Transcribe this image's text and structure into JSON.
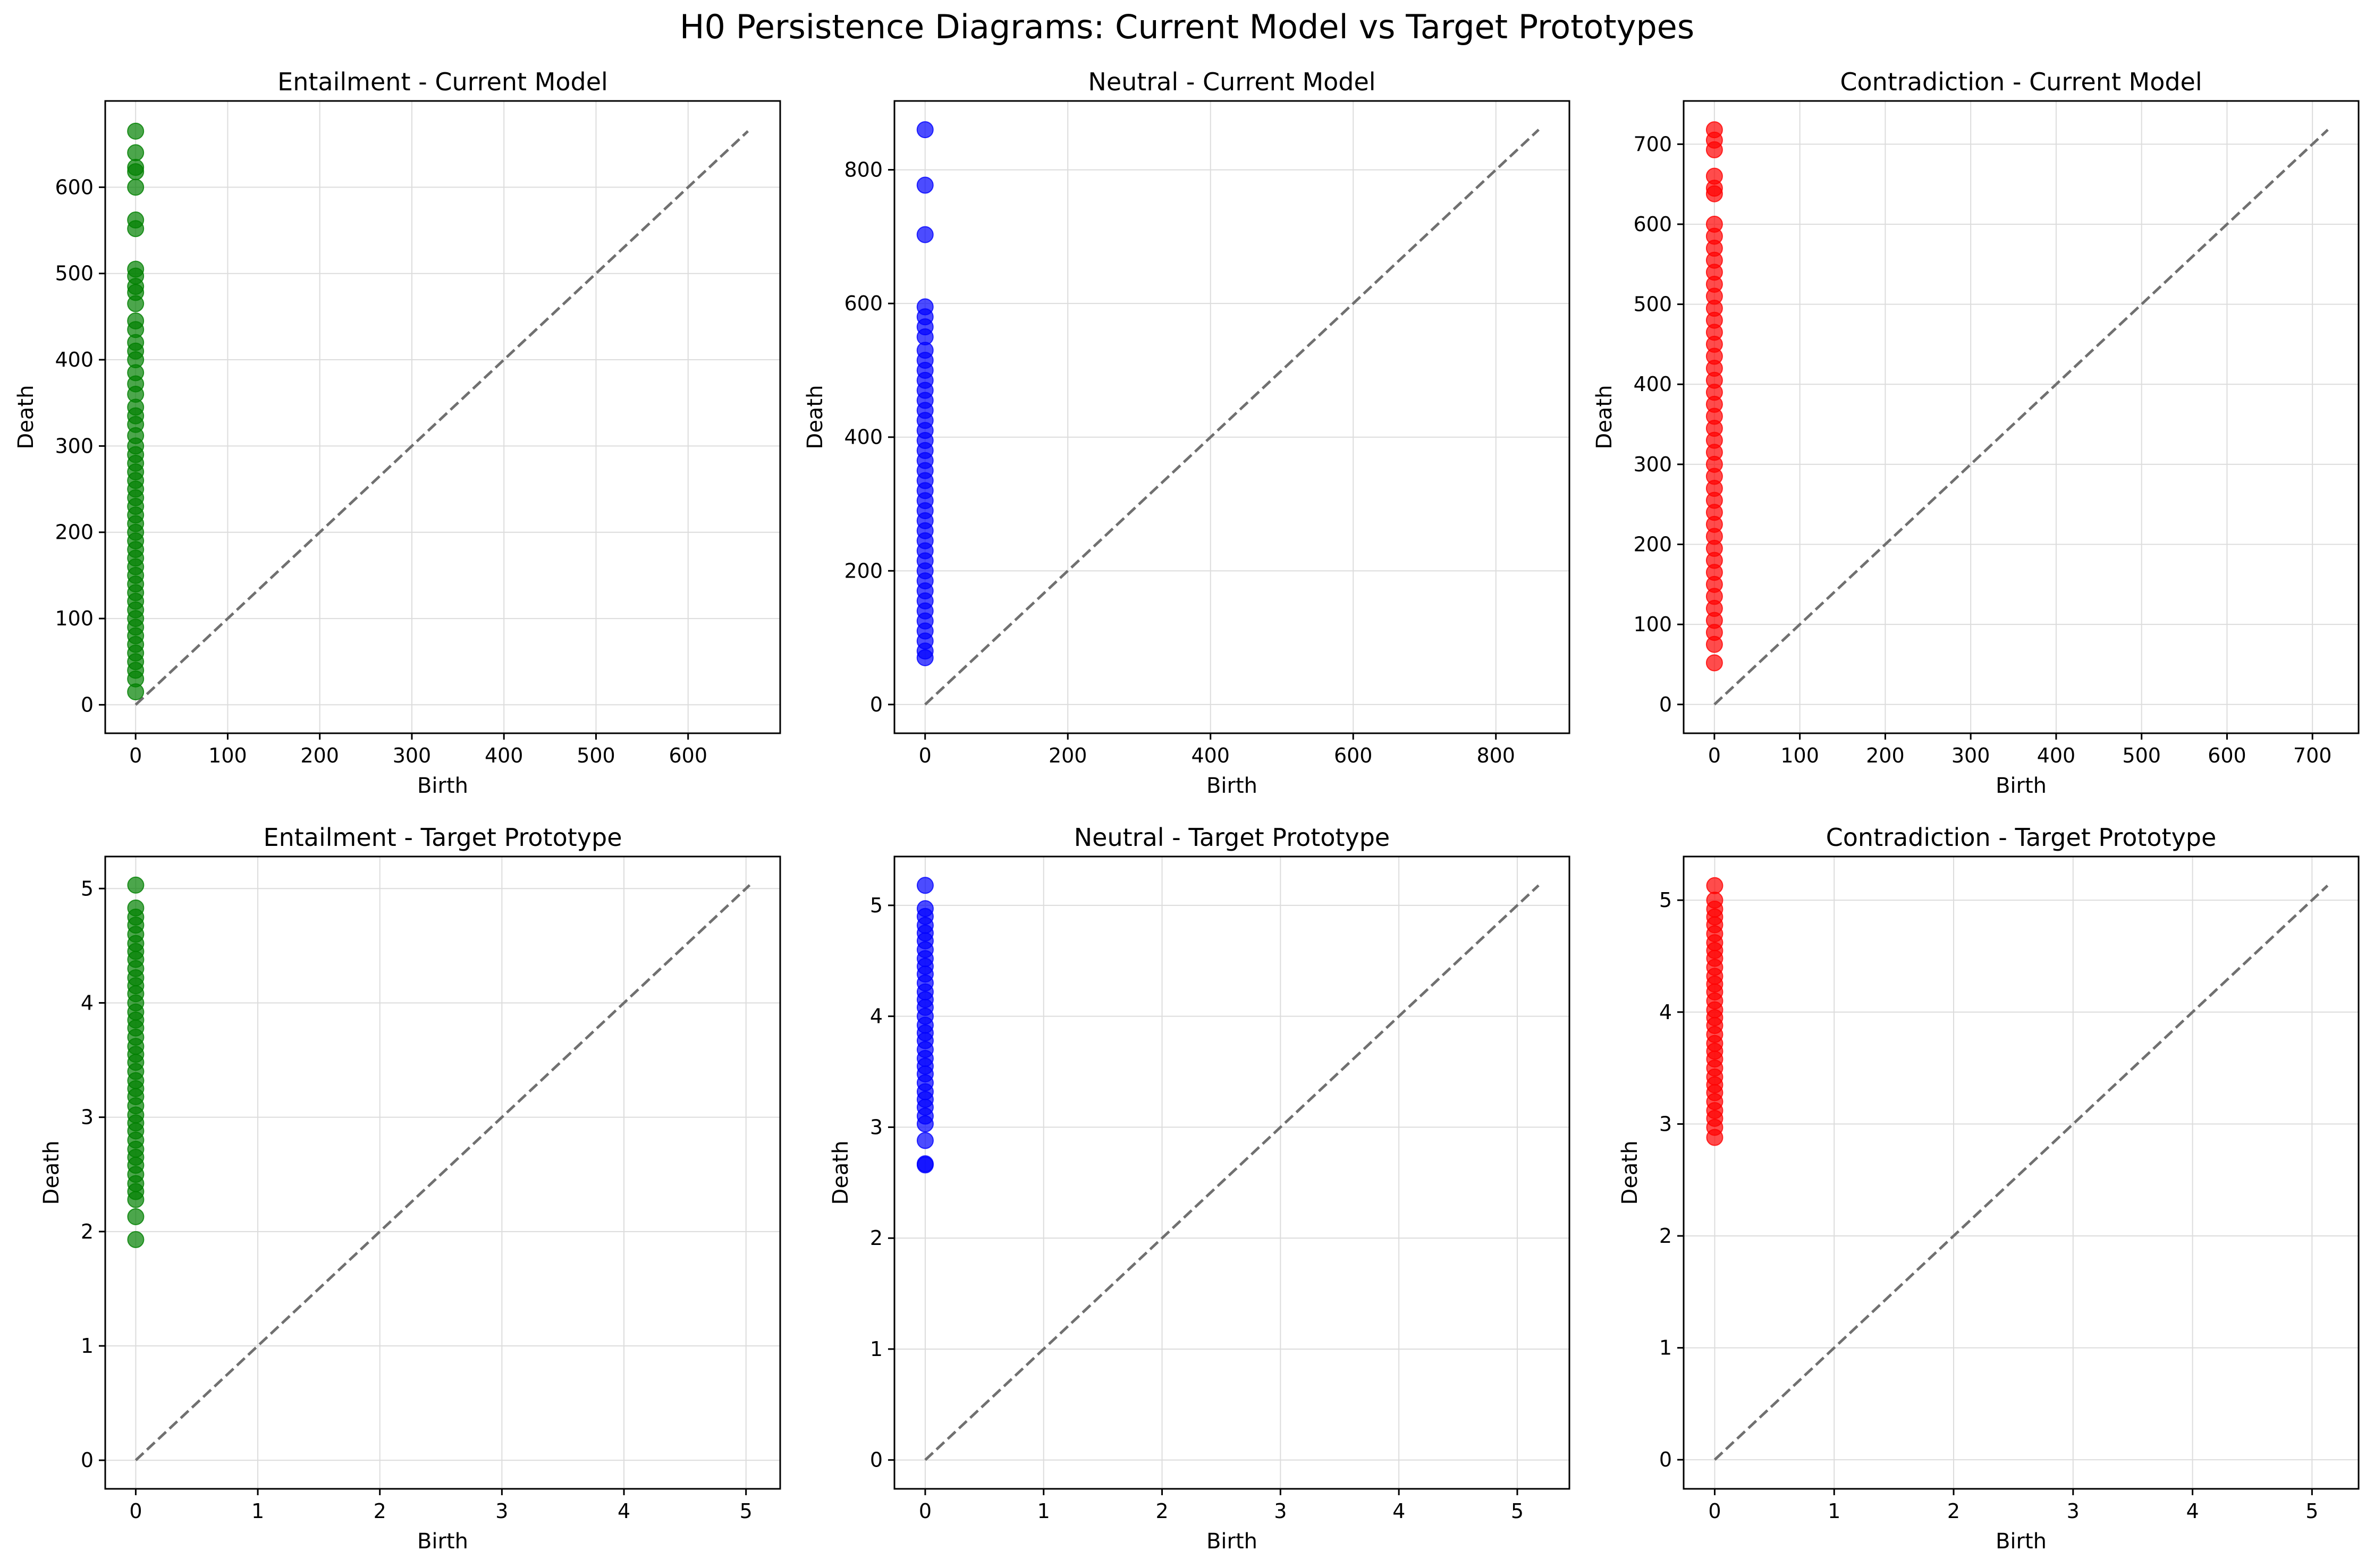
{
  "figure": {
    "title": "H0 Persistence Diagrams: Current Model vs Target Prototypes"
  },
  "chart_data": [
    {
      "type": "scatter",
      "title": "Entailment - Current Model",
      "xlabel": "Birth",
      "ylabel": "Death",
      "color": "#008000",
      "xlim": [
        -33,
        700
      ],
      "ylim": [
        -33,
        700
      ],
      "xticks": [
        0,
        100,
        200,
        300,
        400,
        500,
        600
      ],
      "yticks": [
        0,
        100,
        200,
        300,
        400,
        500,
        600
      ],
      "grid": true,
      "diagonal": [
        0,
        665
      ],
      "x": 0,
      "y": [
        665,
        640,
        623,
        618,
        600,
        562,
        552,
        505,
        497,
        485,
        478,
        465,
        445,
        435,
        420,
        410,
        400,
        385,
        372,
        360,
        345,
        335,
        325,
        312,
        300,
        290,
        280,
        270,
        260,
        250,
        240,
        230,
        220,
        210,
        200,
        190,
        180,
        170,
        160,
        150,
        140,
        130,
        120,
        110,
        100,
        90,
        80,
        70,
        60,
        50,
        40,
        30,
        15
      ]
    },
    {
      "type": "scatter",
      "title": "Neutral - Current Model",
      "xlabel": "Birth",
      "ylabel": "Death",
      "color": "#0000ff",
      "xlim": [
        -43,
        903
      ],
      "ylim": [
        -43,
        903
      ],
      "xticks": [
        0,
        200,
        400,
        600,
        800
      ],
      "yticks": [
        0,
        200,
        400,
        600,
        800
      ],
      "grid": true,
      "diagonal": [
        0,
        860
      ],
      "x": 0,
      "y": [
        860,
        777,
        703,
        595,
        580,
        565,
        550,
        530,
        515,
        500,
        485,
        470,
        455,
        440,
        425,
        410,
        395,
        380,
        365,
        350,
        335,
        320,
        305,
        290,
        275,
        260,
        245,
        230,
        215,
        200,
        185,
        170,
        155,
        140,
        125,
        110,
        95,
        80,
        70
      ]
    },
    {
      "type": "scatter",
      "title": "Contradiction - Current Model",
      "xlabel": "Birth",
      "ylabel": "Death",
      "color": "#ff0000",
      "xlim": [
        -36,
        754
      ],
      "ylim": [
        -36,
        754
      ],
      "xticks": [
        0,
        100,
        200,
        300,
        400,
        500,
        600,
        700
      ],
      "yticks": [
        0,
        100,
        200,
        300,
        400,
        500,
        600,
        700
      ],
      "grid": true,
      "diagonal": [
        0,
        718
      ],
      "x": 0,
      "y": [
        718,
        705,
        693,
        660,
        645,
        638,
        600,
        585,
        570,
        555,
        540,
        525,
        510,
        495,
        480,
        465,
        450,
        435,
        420,
        405,
        390,
        375,
        360,
        345,
        330,
        315,
        300,
        285,
        270,
        255,
        240,
        225,
        210,
        195,
        180,
        165,
        150,
        135,
        120,
        105,
        90,
        75,
        52
      ]
    },
    {
      "type": "scatter",
      "title": "Entailment - Target Prototype",
      "xlabel": "Birth",
      "ylabel": "Death",
      "color": "#008000",
      "xlim": [
        -0.25,
        5.28
      ],
      "ylim": [
        -0.25,
        5.28
      ],
      "xticks": [
        0,
        1,
        2,
        3,
        4,
        5
      ],
      "yticks": [
        0,
        1,
        2,
        3,
        4,
        5
      ],
      "grid": true,
      "diagonal": [
        0,
        5.03
      ],
      "x": 0,
      "y": [
        5.03,
        4.83,
        4.75,
        4.68,
        4.6,
        4.52,
        4.45,
        4.38,
        4.3,
        4.22,
        4.15,
        4.08,
        4.0,
        3.92,
        3.85,
        3.78,
        3.7,
        3.62,
        3.55,
        3.48,
        3.4,
        3.32,
        3.25,
        3.18,
        3.1,
        3.02,
        2.95,
        2.88,
        2.8,
        2.72,
        2.65,
        2.58,
        2.5,
        2.42,
        2.35,
        2.28,
        2.13,
        1.93
      ]
    },
    {
      "type": "scatter",
      "title": "Neutral - Target Prototype",
      "xlabel": "Birth",
      "ylabel": "Death",
      "color": "#0000ff",
      "xlim": [
        -0.26,
        5.44
      ],
      "ylim": [
        -0.26,
        5.44
      ],
      "xticks": [
        0,
        1,
        2,
        3,
        4,
        5
      ],
      "yticks": [
        0,
        1,
        2,
        3,
        4,
        5
      ],
      "grid": true,
      "diagonal": [
        0,
        5.18
      ],
      "x": 0,
      "y": [
        5.18,
        4.97,
        4.9,
        4.82,
        4.75,
        4.68,
        4.6,
        4.52,
        4.45,
        4.38,
        4.3,
        4.22,
        4.15,
        4.08,
        4.0,
        3.92,
        3.85,
        3.78,
        3.7,
        3.62,
        3.55,
        3.48,
        3.4,
        3.32,
        3.25,
        3.18,
        3.1,
        3.03,
        2.88,
        2.67,
        2.66
      ]
    },
    {
      "type": "scatter",
      "title": "Contradiction - Target Prototype",
      "xlabel": "Birth",
      "ylabel": "Death",
      "color": "#ff0000",
      "xlim": [
        -0.26,
        5.39
      ],
      "ylim": [
        -0.26,
        5.39
      ],
      "xticks": [
        0,
        1,
        2,
        3,
        4,
        5
      ],
      "yticks": [
        0,
        1,
        2,
        3,
        4,
        5
      ],
      "grid": true,
      "diagonal": [
        0,
        5.13
      ],
      "x": 0,
      "y": [
        5.13,
        5.0,
        4.92,
        4.85,
        4.78,
        4.7,
        4.62,
        4.55,
        4.48,
        4.4,
        4.32,
        4.25,
        4.18,
        4.1,
        4.02,
        3.95,
        3.88,
        3.8,
        3.72,
        3.65,
        3.58,
        3.5,
        3.42,
        3.35,
        3.28,
        3.2,
        3.12,
        3.05,
        2.97,
        2.88
      ]
    }
  ]
}
